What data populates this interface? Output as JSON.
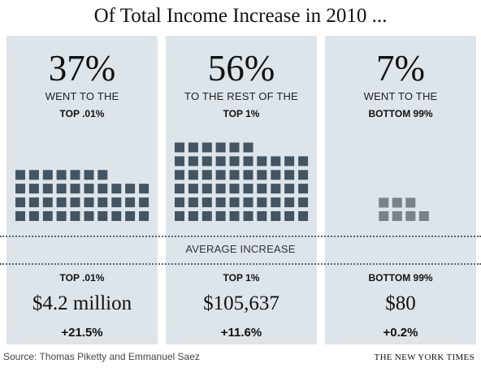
{
  "chart_data": {
    "type": "waffle",
    "title": "Of Total Income Increase in 2010 ...",
    "groups": [
      {
        "percent_label": "37%",
        "line1": "WENT TO THE",
        "line2": "TOP .01%",
        "share": 37,
        "squares": 37,
        "group_label": "TOP .01%",
        "average_increase": "$4.2 million",
        "change": "+21.5%"
      },
      {
        "percent_label": "56%",
        "line1": "TO THE REST OF THE",
        "line2": "TOP 1%",
        "share": 56,
        "squares": 56,
        "group_label": "TOP 1%",
        "average_increase": "$105,637",
        "change": "+11.6%"
      },
      {
        "percent_label": "7%",
        "line1": "WENT TO THE",
        "line2": "BOTTOM 99%",
        "share": 7,
        "squares": 7,
        "group_label": "BOTTOM 99%",
        "average_increase": "$80",
        "change": "+0.2%"
      }
    ],
    "divider_label": "AVERAGE INCREASE",
    "colors": {
      "panel": "#dde4ea",
      "square": "#435462",
      "square_bottom": "#79828a"
    }
  },
  "footer": {
    "source": "Source: Thomas Piketty and Emmanuel Saez",
    "credit": "THE NEW YORK TIMES"
  }
}
